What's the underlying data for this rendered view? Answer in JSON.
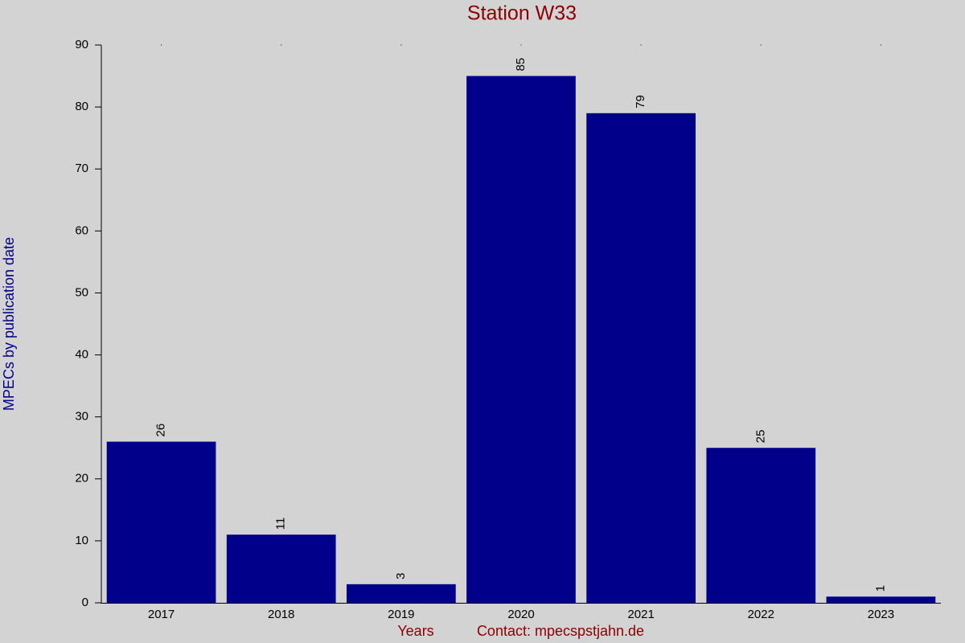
{
  "chart_data": {
    "type": "bar",
    "title": "Station W33",
    "x_label": "Years",
    "contact": "Contact: mpecspstjahn.de",
    "y_label": "MPECs by publication date",
    "categories": [
      "2017",
      "2018",
      "2019",
      "2020",
      "2021",
      "2022",
      "2023"
    ],
    "values": [
      26,
      11,
      3,
      85,
      79,
      25,
      1
    ],
    "color": "#00008b",
    "ylim": [
      0,
      90
    ],
    "yticks": [
      0,
      10,
      20,
      30,
      40,
      50,
      60,
      70,
      80,
      90
    ],
    "grid": false
  }
}
